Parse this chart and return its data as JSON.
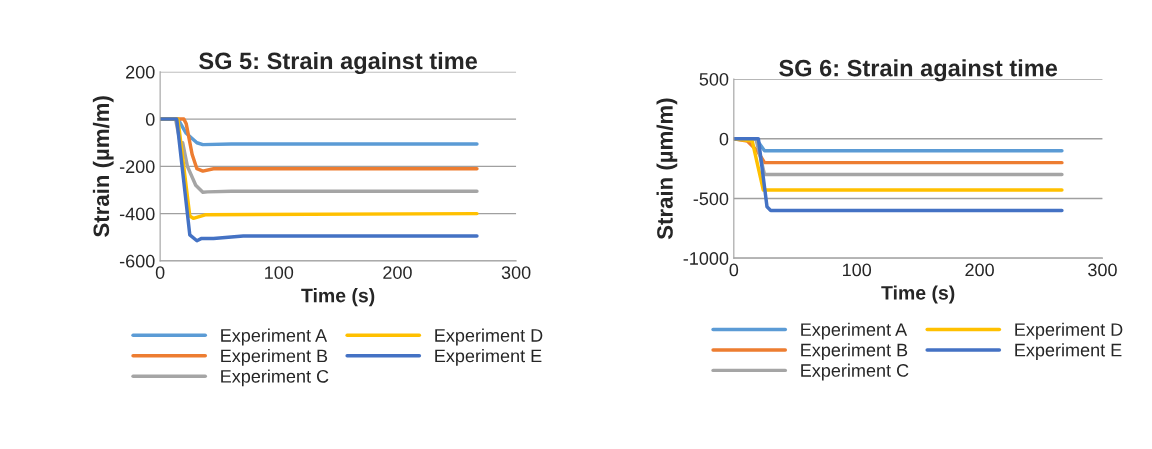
{
  "chart_data": [
    {
      "type": "line",
      "title": "SG 5: Strain against time",
      "xlabel": "Time (s)",
      "ylabel": "Strain (µm/m)",
      "xlim": [
        0,
        300
      ],
      "xticks": [
        0,
        100,
        200,
        300
      ],
      "ylim": [
        -600,
        200
      ],
      "yticks": [
        -600,
        -400,
        -200,
        0,
        200
      ],
      "grid": "y",
      "legend": "bottom",
      "marker": "none",
      "line_style": "solid",
      "series": [
        {
          "name": "Experiment A",
          "color": "#5b9bd5",
          "x": [
            0,
            15,
            22,
            31,
            36,
            60,
            267
          ],
          "values": [
            0,
            0,
            -60,
            -100,
            -108,
            -105,
            -105
          ]
        },
        {
          "name": "Experiment B",
          "color": "#ed7d31",
          "x": [
            0,
            20,
            22,
            27,
            31,
            36,
            45,
            267
          ],
          "values": [
            0,
            0,
            -20,
            -150,
            -210,
            -220,
            -210,
            -210
          ]
        },
        {
          "name": "Experiment C",
          "color": "#a5a5a5",
          "x": [
            0,
            13,
            17,
            19,
            23,
            30,
            36,
            40,
            60,
            267
          ],
          "values": [
            0,
            0,
            -100,
            -100,
            -200,
            -280,
            -310,
            -308,
            -305,
            -305
          ]
        },
        {
          "name": "Experiment D",
          "color": "#ffc000",
          "x": [
            0,
            15,
            25,
            28,
            38,
            267
          ],
          "values": [
            0,
            0,
            -410,
            -420,
            -405,
            -400
          ]
        },
        {
          "name": "Experiment E",
          "color": "#4472c4",
          "x": [
            0,
            14,
            25,
            31,
            35,
            45,
            70,
            267
          ],
          "values": [
            0,
            0,
            -490,
            -515,
            -505,
            -505,
            -495,
            -495
          ]
        }
      ]
    },
    {
      "type": "line",
      "title": "SG 6: Strain against time",
      "xlabel": "Time (s)",
      "ylabel": "Strain (µm/m)",
      "xlim": [
        0,
        300
      ],
      "xticks": [
        0,
        100,
        200,
        300
      ],
      "ylim": [
        -1000,
        500
      ],
      "yticks": [
        -1000,
        -500,
        0,
        500
      ],
      "grid": "y",
      "legend": "bottom",
      "marker": "none",
      "line_style": "solid",
      "series": [
        {
          "name": "Experiment A",
          "color": "#5b9bd5",
          "x": [
            0,
            18,
            25,
            267
          ],
          "values": [
            0,
            0,
            -100,
            -100
          ]
        },
        {
          "name": "Experiment B",
          "color": "#ed7d31",
          "x": [
            0,
            11,
            19,
            25,
            267
          ],
          "values": [
            0,
            -20,
            -100,
            -200,
            -200
          ]
        },
        {
          "name": "Experiment C",
          "color": "#a5a5a5",
          "x": [
            0,
            18,
            25,
            267
          ],
          "values": [
            0,
            0,
            -300,
            -300
          ]
        },
        {
          "name": "Experiment D",
          "color": "#ffc000",
          "x": [
            0,
            15,
            24,
            267
          ],
          "values": [
            0,
            -20,
            -430,
            -430
          ]
        },
        {
          "name": "Experiment E",
          "color": "#4472c4",
          "x": [
            0,
            20,
            27,
            30,
            267
          ],
          "values": [
            0,
            0,
            -570,
            -600,
            -600
          ]
        }
      ]
    }
  ]
}
